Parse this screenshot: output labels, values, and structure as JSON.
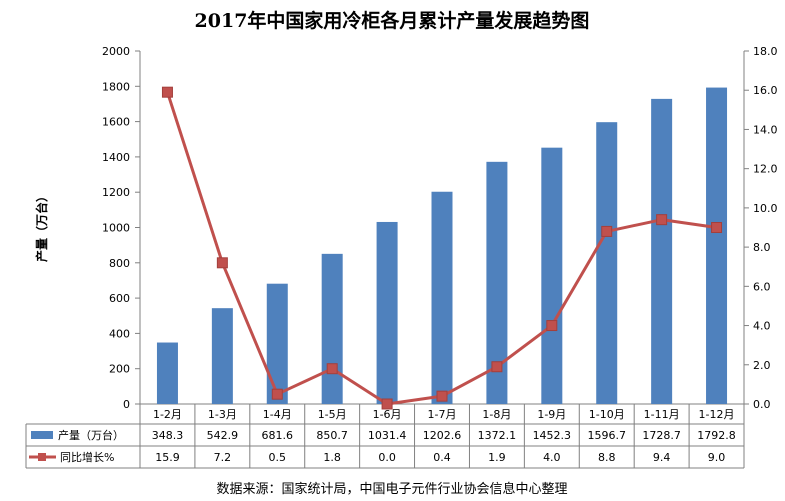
{
  "chart_data": {
    "type": "bar",
    "title": "2017年中国家用冷柜各月累计产量发展趋势图",
    "ylabel": "产量（万台）",
    "categories": [
      "1-2月",
      "1-3月",
      "1-4月",
      "1-5月",
      "1-6月",
      "1-7月",
      "1-8月",
      "1-9月",
      "1-10月",
      "1-11月",
      "1-12月"
    ],
    "series": [
      {
        "name": "产量（万台）",
        "type": "bar",
        "axis": "left",
        "color": "#4F81BD",
        "values": [
          348.3,
          542.9,
          681.6,
          850.7,
          1031.4,
          1202.6,
          1372.1,
          1452.3,
          1596.7,
          1728.7,
          1792.8
        ]
      },
      {
        "name": "同比增长%",
        "type": "line",
        "axis": "right",
        "color": "#C0504D",
        "values": [
          15.9,
          7.2,
          0.5,
          1.8,
          0.0,
          0.4,
          1.9,
          4.0,
          8.8,
          9.4,
          9.0
        ]
      }
    ],
    "y_left": {
      "min": 0,
      "max": 2000,
      "ticks": [
        "0",
        "200",
        "400",
        "600",
        "800",
        "1000",
        "1200",
        "1400",
        "1600",
        "1800",
        "2000"
      ]
    },
    "y_right": {
      "min": 0,
      "max": 18,
      "ticks": [
        "0.0",
        "2.0",
        "4.0",
        "6.0",
        "8.0",
        "10.0",
        "12.0",
        "14.0",
        "16.0",
        "18.0"
      ]
    },
    "table": {
      "rows": [
        [
          "348.3",
          "542.9",
          "681.6",
          "850.7",
          "1031.4",
          "1202.6",
          "1372.1",
          "1452.3",
          "1596.7",
          "1728.7",
          "1792.8"
        ],
        [
          "15.9",
          "7.2",
          "0.5",
          "1.8",
          "0.0",
          "0.4",
          "1.9",
          "4.0",
          "8.8",
          "9.4",
          "9.0"
        ]
      ]
    },
    "grid": false,
    "legend": "data-table"
  },
  "source": "数据来源：国家统计局，中国电子元件行业协会信息中心整理"
}
